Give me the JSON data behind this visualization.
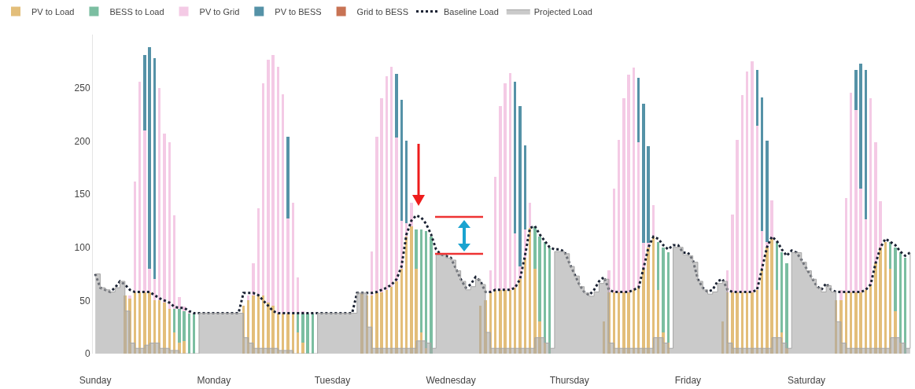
{
  "chart_data": {
    "type": "bar",
    "stacked": true,
    "legend": "top left",
    "categories": [
      "Sunday",
      null,
      null,
      null,
      null,
      null,
      null,
      null,
      null,
      null,
      null,
      null,
      null,
      null,
      null,
      null,
      null,
      null,
      null,
      null,
      null,
      null,
      null,
      null,
      "Monday",
      null,
      null,
      null,
      null,
      null,
      null,
      null,
      null,
      null,
      null,
      null,
      null,
      null,
      null,
      null,
      null,
      null,
      null,
      null,
      null,
      null,
      null,
      null,
      "Tuesday",
      null,
      null,
      null,
      null,
      null,
      null,
      null,
      null,
      null,
      null,
      null,
      null,
      null,
      null,
      null,
      null,
      null,
      null,
      null,
      null,
      null,
      null,
      null,
      "Wednesday",
      null,
      null,
      null,
      null,
      null,
      null,
      null,
      null,
      null,
      null,
      null,
      null,
      null,
      null,
      null,
      null,
      null,
      null,
      null,
      null,
      null,
      null,
      null,
      "Thursday",
      null,
      null,
      null,
      null,
      null,
      null,
      null,
      null,
      null,
      null,
      null,
      null,
      null,
      null,
      null,
      null,
      null,
      null,
      null,
      null,
      null,
      null,
      null,
      "Friday",
      null,
      null,
      null,
      null,
      null,
      null,
      null,
      null,
      null,
      null,
      null,
      null,
      null,
      null,
      null,
      null,
      null,
      null,
      null,
      null,
      null,
      null,
      null,
      "Saturday",
      null,
      null,
      null,
      null,
      null,
      null,
      null,
      null,
      null,
      null,
      null,
      null,
      null,
      null,
      null,
      null,
      null,
      null,
      null,
      null,
      null
    ],
    "ylim": [
      0,
      300
    ],
    "yticks": [
      0,
      50,
      100,
      150,
      200,
      250
    ],
    "series": [
      {
        "name": "PV to Load",
        "color": "#d9a84e",
        "values": [
          null,
          null,
          null,
          null,
          null,
          null,
          55,
          52,
          58,
          58,
          58,
          58,
          50,
          50,
          48,
          42,
          20,
          10,
          12,
          0,
          0,
          null,
          null,
          null,
          null,
          null,
          null,
          null,
          null,
          null,
          45,
          50,
          55,
          55,
          55,
          48,
          45,
          38,
          38,
          38,
          38,
          20,
          10,
          0,
          0,
          null,
          null,
          null,
          null,
          null,
          null,
          null,
          null,
          null,
          57,
          55,
          55,
          57,
          58,
          60,
          63,
          68,
          80,
          110,
          120,
          80,
          20,
          5,
          0,
          null,
          null,
          null,
          null,
          null,
          null,
          null,
          null,
          null,
          45,
          50,
          58,
          60,
          60,
          60,
          60,
          62,
          70,
          90,
          118,
          80,
          30,
          10,
          0,
          null,
          null,
          null,
          null,
          null,
          null,
          null,
          null,
          null,
          0,
          30,
          58,
          58,
          58,
          58,
          58,
          60,
          62,
          80,
          100,
          110,
          60,
          20,
          10,
          null,
          null,
          null,
          null,
          null,
          null,
          null,
          null,
          null,
          0,
          30,
          58,
          58,
          58,
          58,
          58,
          58,
          60,
          80,
          100,
          108,
          60,
          20,
          5,
          null,
          null,
          null,
          null,
          null,
          null,
          null,
          null,
          null,
          50,
          50,
          58,
          58,
          58,
          58,
          60,
          65,
          85,
          100,
          105,
          80,
          40,
          10,
          0,
          null
        ]
      },
      {
        "name": "BESS to Load",
        "color": "#4fa882",
        "values": [
          null,
          null,
          null,
          null,
          null,
          null,
          0,
          0,
          0,
          0,
          0,
          0,
          0,
          0,
          0,
          0,
          22,
          32,
          28,
          38,
          38,
          null,
          null,
          null,
          null,
          null,
          null,
          null,
          null,
          null,
          0,
          0,
          0,
          0,
          0,
          0,
          0,
          0,
          0,
          0,
          0,
          18,
          28,
          38,
          38,
          null,
          null,
          null,
          null,
          null,
          null,
          null,
          null,
          null,
          0,
          0,
          0,
          0,
          0,
          0,
          0,
          0,
          0,
          0,
          0,
          37,
          97,
          110,
          110,
          null,
          null,
          null,
          null,
          null,
          null,
          null,
          null,
          null,
          0,
          0,
          0,
          0,
          0,
          0,
          0,
          0,
          0,
          0,
          0,
          40,
          80,
          95,
          100,
          null,
          null,
          null,
          null,
          null,
          null,
          null,
          null,
          null,
          0,
          0,
          0,
          0,
          0,
          0,
          0,
          0,
          0,
          0,
          0,
          0,
          45,
          80,
          85,
          null,
          null,
          null,
          null,
          null,
          null,
          null,
          null,
          null,
          0,
          0,
          0,
          0,
          0,
          0,
          0,
          0,
          0,
          0,
          0,
          0,
          45,
          75,
          80,
          null,
          null,
          null,
          null,
          null,
          null,
          null,
          null,
          null,
          0,
          0,
          0,
          0,
          0,
          0,
          0,
          0,
          0,
          0,
          0,
          25,
          60,
          85,
          90,
          null
        ]
      },
      {
        "name": "PV to Grid",
        "color": "#f0b8dc",
        "values": [
          null,
          null,
          null,
          null,
          null,
          null,
          0,
          3,
          104,
          198,
          152,
          22,
          20,
          200,
          159,
          157,
          88,
          11,
          4,
          2,
          0,
          null,
          null,
          null,
          null,
          null,
          null,
          null,
          null,
          null,
          0,
          5,
          30,
          82,
          199,
          228,
          236,
          232,
          206,
          89,
          104,
          34,
          2,
          0,
          0,
          null,
          null,
          null,
          null,
          null,
          null,
          null,
          null,
          null,
          0,
          0,
          41,
          147,
          182,
          201,
          207,
          135,
          45,
          13,
          22,
          0,
          0,
          0,
          0,
          null,
          null,
          null,
          null,
          null,
          null,
          null,
          null,
          null,
          0,
          0,
          20,
          106,
          173,
          194,
          204,
          51,
          12,
          27,
          24,
          0,
          0,
          0,
          0,
          null,
          null,
          null,
          null,
          null,
          null,
          null,
          null,
          null,
          0,
          0,
          20,
          97,
          143,
          182,
          204,
          209,
          137,
          24,
          4,
          30,
          0,
          0,
          0,
          null,
          null,
          null,
          null,
          null,
          null,
          null,
          null,
          null,
          0,
          0,
          20,
          73,
          143,
          185,
          207,
          217,
          154,
          35,
          5,
          36,
          0,
          0,
          0,
          null,
          null,
          null,
          null,
          null,
          null,
          null,
          null,
          null,
          0,
          10,
          88,
          187,
          171,
          97,
          66,
          175,
          114,
          43,
          0,
          0,
          0,
          0,
          0,
          null
        ]
      },
      {
        "name": "PV to BESS",
        "color": "#1c6e8a",
        "values": [
          null,
          null,
          null,
          null,
          null,
          null,
          0,
          0,
          0,
          0,
          71,
          208,
          208,
          0,
          0,
          0,
          0,
          0,
          0,
          0,
          0,
          null,
          null,
          null,
          null,
          null,
          null,
          null,
          null,
          null,
          0,
          0,
          0,
          0,
          0,
          0,
          0,
          0,
          0,
          77,
          0,
          0,
          0,
          0,
          0,
          null,
          null,
          null,
          null,
          null,
          null,
          null,
          null,
          null,
          0,
          0,
          0,
          0,
          0,
          0,
          0,
          60,
          114,
          77,
          0,
          0,
          0,
          0,
          0,
          null,
          null,
          null,
          null,
          null,
          null,
          null,
          null,
          null,
          0,
          0,
          0,
          0,
          0,
          0,
          0,
          143,
          151,
          79,
          0,
          0,
          0,
          0,
          0,
          null,
          null,
          null,
          null,
          null,
          null,
          null,
          null,
          null,
          0,
          0,
          0,
          0,
          0,
          0,
          0,
          0,
          60,
          131,
          91,
          0,
          0,
          0,
          0,
          null,
          null,
          null,
          null,
          null,
          null,
          null,
          null,
          null,
          0,
          0,
          0,
          0,
          0,
          0,
          0,
          0,
          53,
          126,
          95,
          0,
          0,
          0,
          0,
          null,
          null,
          null,
          null,
          null,
          null,
          null,
          null,
          null,
          0,
          0,
          0,
          0,
          38,
          118,
          141,
          0,
          0,
          0,
          0,
          0,
          0,
          0,
          0,
          null
        ]
      },
      {
        "name": "Grid to BESS",
        "color": "#b5441b",
        "values": [
          null,
          null,
          null,
          null,
          null,
          null,
          null,
          null,
          null,
          null,
          null,
          null,
          null,
          null,
          null,
          null,
          null,
          null,
          0,
          null,
          null,
          null,
          null,
          null,
          null,
          null,
          null,
          null,
          null,
          null,
          null,
          null,
          null,
          null,
          null,
          null,
          null,
          null,
          null,
          null,
          null,
          null,
          0,
          null,
          null,
          null,
          null,
          null,
          null,
          null,
          null,
          null,
          null,
          null,
          null,
          null,
          null,
          null,
          null,
          null,
          null,
          null,
          null,
          null,
          null,
          null,
          0,
          null,
          null,
          null,
          null,
          null,
          null,
          null,
          null,
          null,
          null,
          null,
          null,
          null,
          null,
          null,
          null,
          null,
          null,
          null,
          null,
          null,
          null,
          null,
          0,
          null,
          null,
          null,
          null,
          null,
          null,
          null,
          null,
          null,
          null,
          null,
          null,
          null,
          null,
          null,
          null,
          null,
          null,
          null,
          null,
          null,
          null,
          null,
          0,
          null,
          null,
          null,
          null,
          null,
          null,
          null,
          null,
          null,
          null,
          null,
          null,
          null,
          null,
          null,
          null,
          null,
          null,
          null,
          null,
          null,
          null,
          null,
          0,
          null,
          null,
          null,
          null,
          null,
          null,
          null,
          null,
          null,
          null,
          null,
          null,
          null,
          null,
          null,
          null,
          null,
          null,
          null,
          null,
          null,
          null,
          null,
          0,
          null,
          null,
          null
        ]
      },
      {
        "name": "Baseline Load",
        "type": "line",
        "line_style": "dotted",
        "color": "#1a2233",
        "values": [
          75,
          62,
          60,
          58,
          62,
          68,
          65,
          60,
          58,
          58,
          58,
          58,
          55,
          52,
          50,
          48,
          44,
          43,
          43,
          40,
          38,
          38,
          38,
          38,
          38,
          38,
          38,
          38,
          38,
          38,
          57,
          57,
          57,
          55,
          50,
          45,
          40,
          38,
          38,
          38,
          38,
          38,
          38,
          38,
          38,
          38,
          38,
          38,
          38,
          38,
          38,
          38,
          38,
          57,
          57,
          57,
          57,
          58,
          60,
          62,
          65,
          70,
          82,
          112,
          125,
          130,
          128,
          122,
          112,
          98,
          93,
          92,
          90,
          80,
          70,
          62,
          65,
          72,
          68,
          58,
          58,
          60,
          60,
          60,
          60,
          62,
          70,
          92,
          118,
          120,
          112,
          106,
          100,
          98,
          98,
          96,
          85,
          75,
          65,
          58,
          55,
          60,
          68,
          72,
          60,
          58,
          58,
          58,
          58,
          60,
          62,
          80,
          100,
          110,
          108,
          102,
          98,
          102,
          102,
          95,
          95,
          88,
          70,
          62,
          58,
          60,
          68,
          70,
          60,
          58,
          58,
          58,
          58,
          58,
          60,
          80,
          100,
          110,
          106,
          98,
          92,
          97,
          95,
          88,
          80,
          72,
          64,
          60,
          66,
          60,
          58,
          58,
          58,
          58,
          58,
          58,
          60,
          65,
          85,
          100,
          108,
          105,
          102,
          96,
          92,
          95
        ]
      },
      {
        "name": "Projected Load",
        "type": "area",
        "color": "#a6a6a6",
        "values": [
          75,
          62,
          60,
          58,
          62,
          68,
          40,
          10,
          5,
          5,
          8,
          10,
          10,
          5,
          5,
          3,
          3,
          0,
          0,
          0,
          0,
          38,
          38,
          38,
          38,
          38,
          38,
          38,
          38,
          38,
          15,
          10,
          5,
          5,
          5,
          5,
          5,
          3,
          3,
          3,
          0,
          0,
          0,
          0,
          0,
          38,
          38,
          38,
          38,
          38,
          38,
          38,
          38,
          57,
          57,
          25,
          5,
          5,
          5,
          5,
          5,
          5,
          5,
          5,
          5,
          12,
          12,
          10,
          5,
          93,
          93,
          90,
          88,
          78,
          68,
          60,
          63,
          70,
          65,
          20,
          5,
          5,
          5,
          5,
          5,
          5,
          5,
          5,
          5,
          15,
          15,
          10,
          5,
          96,
          96,
          94,
          82,
          73,
          63,
          57,
          54,
          58,
          66,
          70,
          10,
          5,
          5,
          5,
          5,
          5,
          5,
          5,
          5,
          15,
          15,
          10,
          5,
          100,
          100,
          93,
          92,
          86,
          68,
          60,
          56,
          58,
          66,
          68,
          10,
          5,
          5,
          5,
          5,
          5,
          5,
          5,
          5,
          15,
          15,
          10,
          5,
          95,
          95,
          86,
          78,
          70,
          62,
          58,
          64,
          58,
          30,
          10,
          5,
          5,
          5,
          5,
          5,
          5,
          5,
          5,
          5,
          15,
          15,
          10,
          5,
          95
        ]
      }
    ]
  }
}
